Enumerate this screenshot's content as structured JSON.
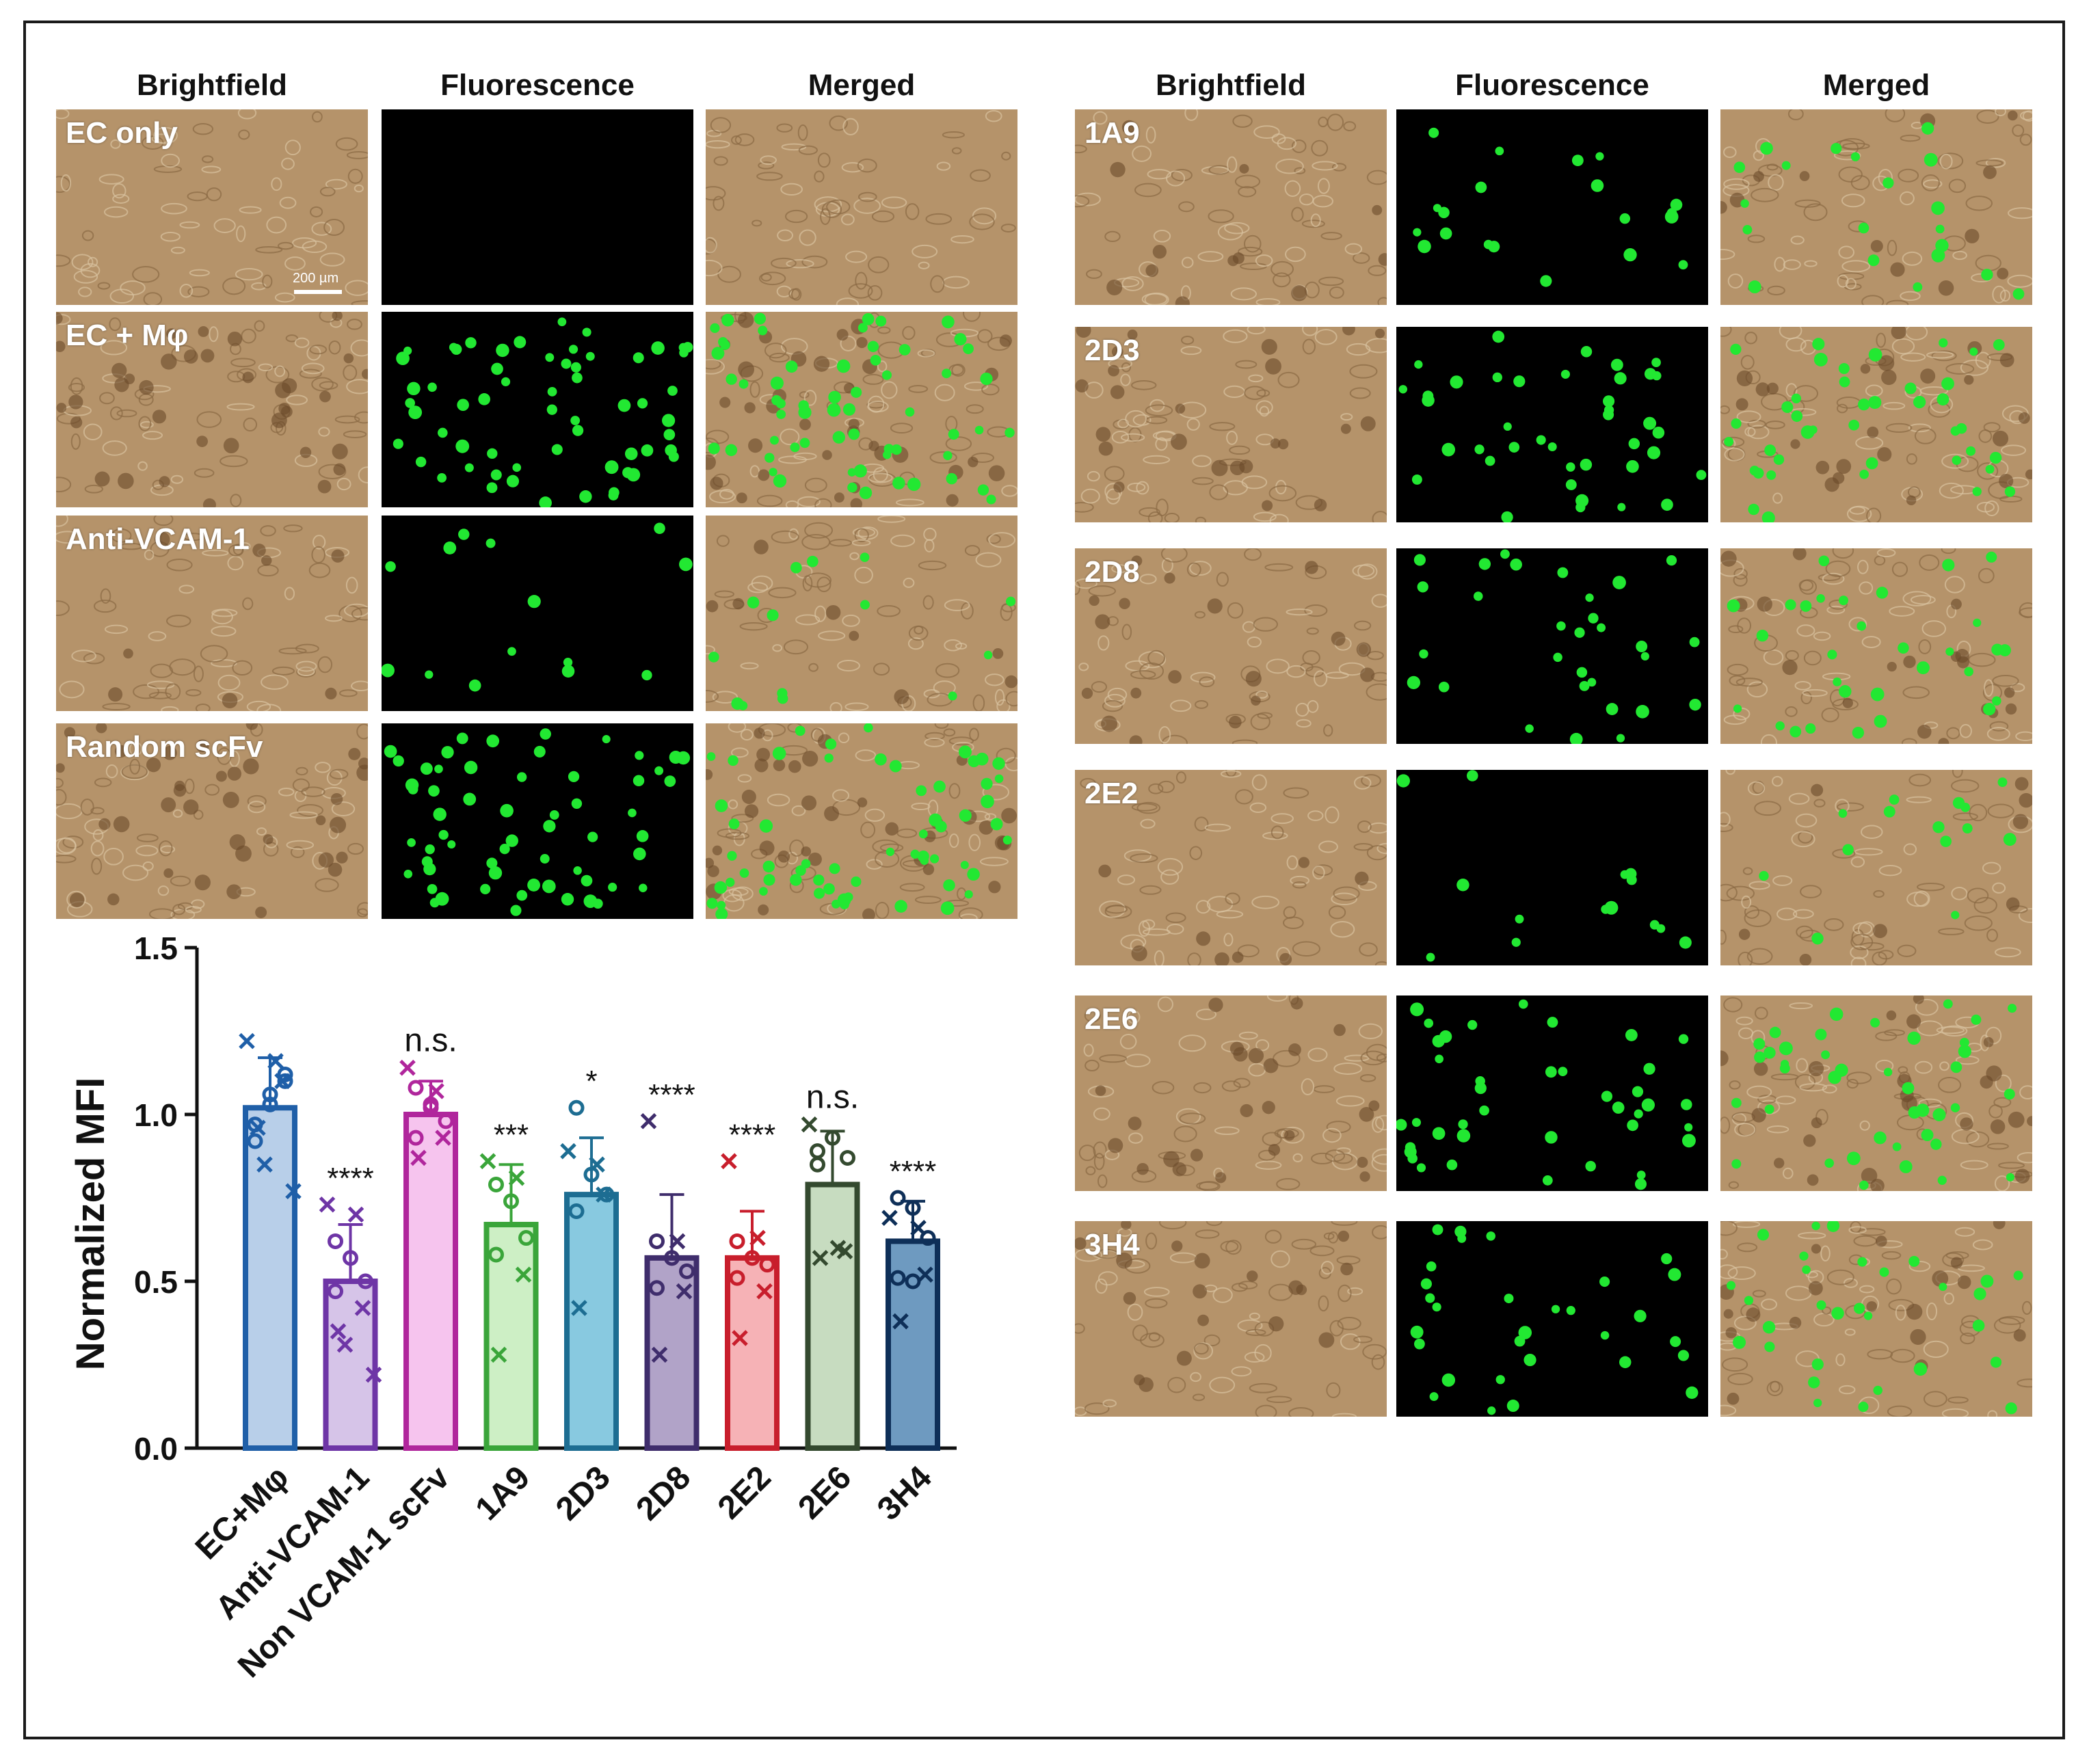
{
  "left_block": {
    "headers": [
      "Brightfield",
      "Fluorescence",
      "Merged"
    ],
    "rows": [
      {
        "label": "EC only",
        "fluor_dots": 0
      },
      {
        "label": "EC + Mφ",
        "fluor_dots": 60
      },
      {
        "label": "Anti-VCAM-1",
        "fluor_dots": 14
      },
      {
        "label": "Random scFv",
        "fluor_dots": 60
      }
    ],
    "scalebar_label": "200 µm"
  },
  "right_block": {
    "headers": [
      "Brightfield",
      "Fluorescence",
      "Merged"
    ],
    "rows": [
      {
        "label": "1A9",
        "fluor_dots": 20
      },
      {
        "label": "2D3",
        "fluor_dots": 40
      },
      {
        "label": "2D8",
        "fluor_dots": 30
      },
      {
        "label": "2E2",
        "fluor_dots": 14
      },
      {
        "label": "2E6",
        "fluor_dots": 40
      },
      {
        "label": "3H4",
        "fluor_dots": 30
      }
    ]
  },
  "colors": {
    "brightfield": "#b5936a",
    "fluorescence_bg": "#000000",
    "fluorescence_dot": "#22e832"
  },
  "chart_data": {
    "type": "bar",
    "ylabel": "Normalized MFI",
    "ylim": [
      0,
      1.5
    ],
    "yticks": [
      "0.0",
      "0.5",
      "1.0",
      "1.5"
    ],
    "categories": [
      "EC+Mφ",
      "Anti-VCAM-1",
      "Non VCAM-1 scFv",
      "1A9",
      "2D3",
      "2D8",
      "2E2",
      "2E6",
      "3H4"
    ],
    "values": [
      1.02,
      0.5,
      1.0,
      0.67,
      0.76,
      0.57,
      0.57,
      0.79,
      0.62
    ],
    "errors": [
      0.15,
      0.17,
      0.1,
      0.18,
      0.17,
      0.19,
      0.14,
      0.16,
      0.12
    ],
    "significance": [
      "",
      "****",
      "n.s.",
      "***",
      "*",
      "****",
      "****",
      "n.s.",
      "****"
    ],
    "bar_fill": [
      "#b8cfe9",
      "#d6c4e8",
      "#f6c4ee",
      "#cdefc5",
      "#88c9e0",
      "#b1a3c8",
      "#f6b2b6",
      "#c7dcc0",
      "#6e9ac0"
    ],
    "bar_edge": [
      "#1f5fa8",
      "#6e35a6",
      "#b0269c",
      "#3aa53a",
      "#1d6d92",
      "#3f2d6c",
      "#c81e2c",
      "#344a2f",
      "#0e2f58"
    ],
    "points_circle": [
      [
        0.92,
        1.03,
        1.12,
        0.97,
        1.06,
        1.1
      ],
      [
        0.62,
        0.57,
        0.5,
        0.47
      ],
      [
        1.08,
        1.03,
        0.98,
        0.93,
        1.02
      ],
      [
        0.79,
        0.74,
        0.63,
        0.58
      ],
      [
        1.02,
        0.82,
        0.76,
        0.71
      ],
      [
        0.62,
        0.57,
        0.53,
        0.48
      ],
      [
        0.62,
        0.57,
        0.55,
        0.51
      ],
      [
        0.89,
        0.93,
        0.87,
        0.85
      ],
      [
        0.75,
        0.72,
        0.63,
        0.51,
        0.5
      ]
    ],
    "points_cross": [
      [
        1.22,
        1.16,
        1.1,
        0.96,
        0.85,
        0.77
      ],
      [
        0.73,
        0.7,
        0.42,
        0.35,
        0.31,
        0.22
      ],
      [
        1.14,
        1.07,
        0.93,
        0.87
      ],
      [
        0.86,
        0.81,
        0.52,
        0.28
      ],
      [
        0.89,
        0.85,
        0.76,
        0.42
      ],
      [
        0.98,
        0.62,
        0.47,
        0.28
      ],
      [
        0.86,
        0.63,
        0.47,
        0.33
      ],
      [
        0.97,
        0.6,
        0.59,
        0.57
      ],
      [
        0.69,
        0.66,
        0.52,
        0.38
      ]
    ]
  }
}
